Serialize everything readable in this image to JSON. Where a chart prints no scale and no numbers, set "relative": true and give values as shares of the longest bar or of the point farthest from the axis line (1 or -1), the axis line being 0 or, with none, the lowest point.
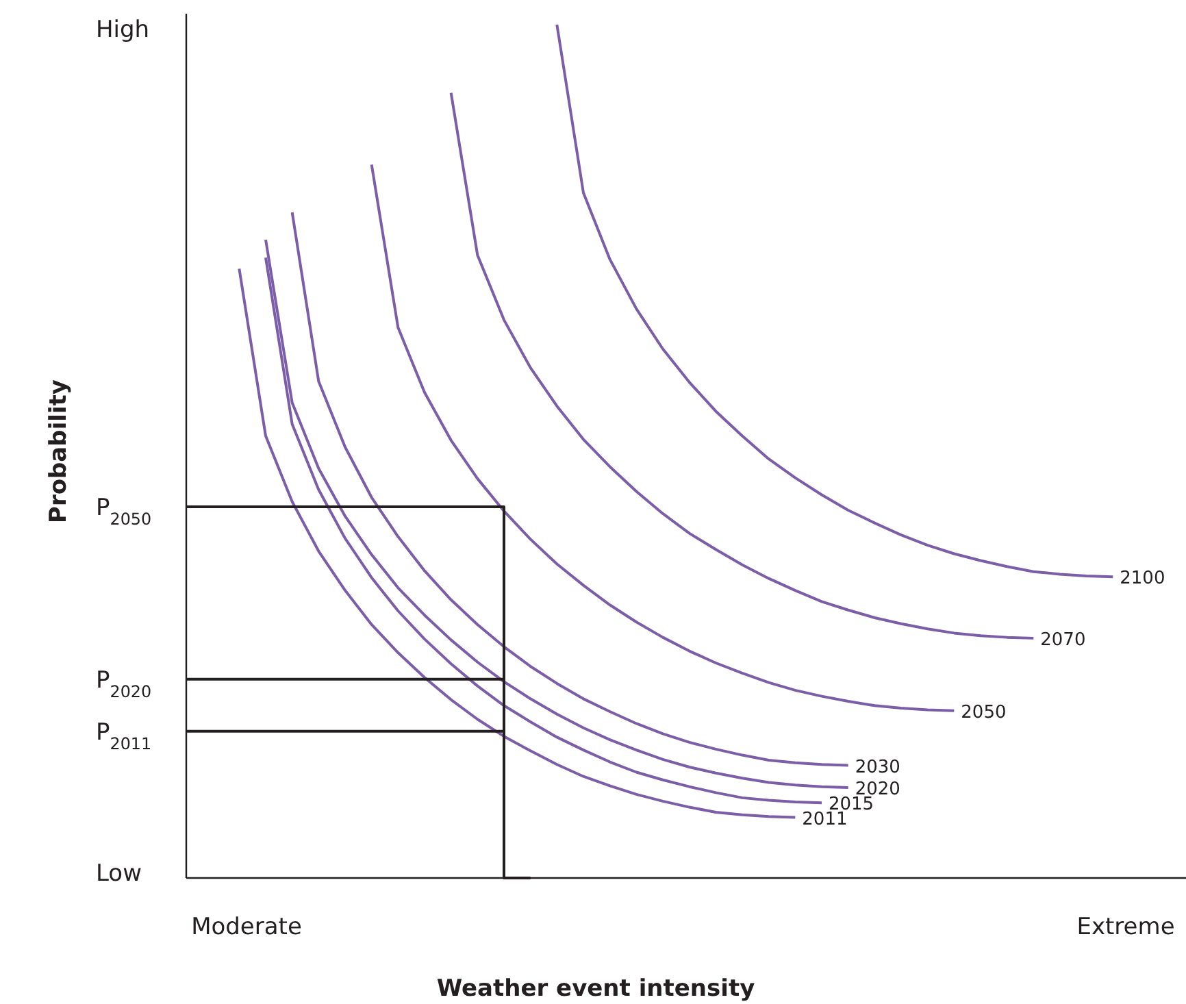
{
  "chart_data": {
    "type": "line",
    "xlabel": "Weather event intensity",
    "ylabel": "Probability",
    "relative": true,
    "line_style": "solid",
    "annotations": [
      "Low",
      "High",
      "Moderate",
      "Extreme"
    ],
    "categories": [
      null,
      null,
      null,
      null,
      null,
      null,
      null,
      null,
      null,
      null,
      null,
      null,
      null,
      null,
      null,
      null,
      null,
      null,
      null,
      null,
      null,
      null,
      null,
      null,
      null,
      null,
      null,
      null,
      null,
      null,
      null,
      null,
      null,
      null,
      null,
      null
    ],
    "series": [
      {
        "name": "2011",
        "color": "#7b5ea7",
        "values": [
          null,
          null,
          0.714,
          0.518,
          0.441,
          0.383,
          0.337,
          0.297,
          0.264,
          0.235,
          0.209,
          0.186,
          0.166,
          0.149,
          0.133,
          0.119,
          0.108,
          0.098,
          0.09,
          0.083,
          0.077,
          0.074,
          0.072,
          0.071,
          null,
          null,
          null,
          null,
          null,
          null,
          null,
          null,
          null,
          null,
          null,
          null
        ]
      },
      {
        "name": "2015",
        "color": "#7b5ea7",
        "values": [
          null,
          null,
          null,
          0.727,
          0.532,
          0.455,
          0.398,
          0.352,
          0.313,
          0.28,
          0.251,
          0.225,
          0.202,
          0.183,
          0.165,
          0.15,
          0.136,
          0.124,
          0.115,
          0.107,
          0.1,
          0.094,
          0.091,
          0.089,
          0.088,
          null,
          null,
          null,
          null,
          null,
          null,
          null,
          null,
          null,
          null,
          null
        ]
      },
      {
        "name": "2020",
        "color": "#7b5ea7",
        "values": [
          null,
          null,
          null,
          0.748,
          0.557,
          0.48,
          0.424,
          0.379,
          0.34,
          0.308,
          0.279,
          0.253,
          0.23,
          0.21,
          0.192,
          0.176,
          0.162,
          0.15,
          0.139,
          0.13,
          0.123,
          0.117,
          0.112,
          0.109,
          0.107,
          0.106,
          null,
          null,
          null,
          null,
          null,
          null,
          null,
          null,
          null,
          null
        ]
      },
      {
        "name": "2030",
        "color": "#7b5ea7",
        "values": [
          null,
          null,
          null,
          null,
          0.78,
          0.582,
          0.505,
          0.446,
          0.4,
          0.36,
          0.326,
          0.297,
          0.271,
          0.248,
          0.228,
          0.21,
          0.195,
          0.181,
          0.169,
          0.159,
          0.151,
          0.144,
          0.138,
          0.135,
          0.133,
          0.132,
          null,
          null,
          null,
          null,
          null,
          null,
          null,
          null,
          null,
          null
        ]
      },
      {
        "name": "2050",
        "color": "#7b5ea7",
        "values": [
          null,
          null,
          null,
          null,
          null,
          null,
          null,
          0.836,
          0.645,
          0.569,
          0.513,
          0.468,
          0.43,
          0.397,
          0.368,
          0.343,
          0.32,
          0.3,
          0.282,
          0.266,
          0.252,
          0.24,
          0.229,
          0.22,
          0.213,
          0.207,
          0.202,
          0.199,
          0.197,
          0.196,
          null,
          null,
          null,
          null,
          null,
          null
        ]
      },
      {
        "name": "2070",
        "color": "#7b5ea7",
        "values": [
          null,
          null,
          null,
          null,
          null,
          null,
          null,
          null,
          null,
          null,
          0.92,
          0.73,
          0.654,
          0.598,
          0.553,
          0.514,
          0.482,
          0.453,
          0.427,
          0.404,
          0.385,
          0.367,
          0.351,
          0.337,
          0.324,
          0.314,
          0.305,
          0.298,
          0.292,
          0.287,
          0.284,
          0.282,
          0.281,
          null,
          null,
          null
        ]
      },
      {
        "name": "2100",
        "color": "#7b5ea7",
        "values": [
          null,
          null,
          null,
          null,
          null,
          null,
          null,
          null,
          null,
          null,
          null,
          null,
          null,
          null,
          1,
          0.803,
          0.725,
          0.667,
          0.62,
          0.581,
          0.547,
          0.518,
          0.491,
          0.469,
          0.449,
          0.431,
          0.416,
          0.402,
          0.39,
          0.38,
          0.372,
          0.365,
          0.359,
          0.356,
          0.354,
          0.353
        ]
      },
      {
        "type": "step",
        "name": "P$_{2050}$",
        "color": "#231f20",
        "values": [
          0.435,
          0.435,
          0.435,
          0.435,
          0.435,
          0.435,
          0.435,
          0.435,
          0.435,
          0.435,
          0.435,
          0.435,
          0.435,
          0,
          null,
          null,
          null,
          null,
          null,
          null,
          null,
          null,
          null,
          null,
          null,
          null,
          null,
          null,
          null,
          null,
          null,
          null,
          null,
          null,
          null,
          null
        ]
      },
      {
        "type": "step",
        "name": "P$_{2020}$",
        "color": "#231f20",
        "values": [
          0.233,
          0.233,
          0.233,
          0.233,
          0.233,
          0.233,
          0.233,
          0.233,
          0.233,
          0.233,
          0.233,
          0.233,
          0.233,
          null,
          null,
          null,
          null,
          null,
          null,
          null,
          null,
          null,
          null,
          null,
          null,
          null,
          null,
          null,
          null,
          null,
          null,
          null,
          null,
          null,
          null,
          null
        ]
      },
      {
        "type": "step",
        "name": "P$_{2011}$",
        "color": "#231f20",
        "values": [
          0.172,
          0.172,
          0.172,
          0.172,
          0.172,
          0.172,
          0.172,
          0.172,
          0.172,
          0.172,
          0.172,
          0.172,
          0.172,
          null,
          null,
          null,
          null,
          null,
          null,
          null,
          null,
          null,
          null,
          null,
          null,
          null,
          null,
          null,
          null,
          null,
          null,
          null,
          null,
          null,
          null,
          null
        ]
      }
    ]
  }
}
